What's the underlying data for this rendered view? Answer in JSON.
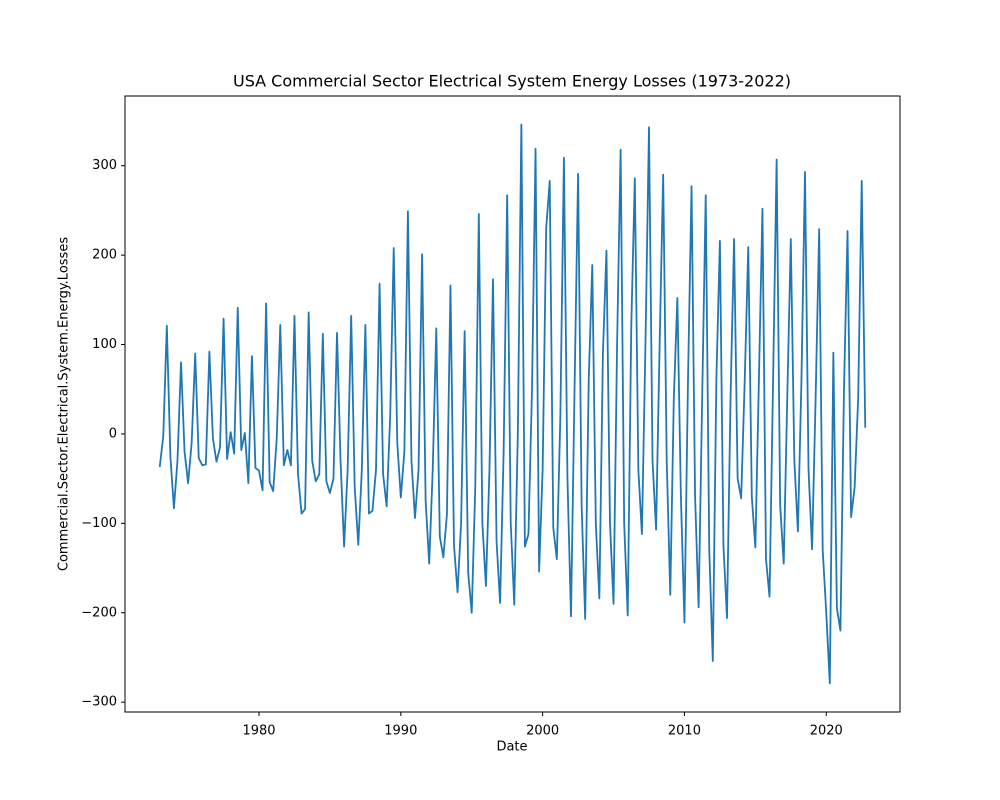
{
  "chart_data": {
    "type": "line",
    "title": "USA Commercial Sector Electrical System Energy Losses (1973-2022)",
    "x_label": "Date",
    "y_label": "Commercial.Sector.Electrical.System.Energy.Losses",
    "x": [
      1973,
      1973.25,
      1973.5,
      1973.75,
      1974,
      1974.25,
      1974.5,
      1974.75,
      1975,
      1975.25,
      1975.5,
      1975.75,
      1976,
      1976.25,
      1976.5,
      1976.75,
      1977,
      1977.25,
      1977.5,
      1977.75,
      1978,
      1978.25,
      1978.5,
      1978.75,
      1979,
      1979.25,
      1979.5,
      1979.75,
      1980,
      1980.25,
      1980.5,
      1980.75,
      1981,
      1981.25,
      1981.5,
      1981.75,
      1982,
      1982.25,
      1982.5,
      1982.75,
      1983,
      1983.25,
      1983.5,
      1983.75,
      1984,
      1984.25,
      1984.5,
      1984.75,
      1985,
      1985.25,
      1985.5,
      1985.75,
      1986,
      1986.25,
      1986.5,
      1986.75,
      1987,
      1987.25,
      1987.5,
      1987.75,
      1988,
      1988.25,
      1988.5,
      1988.75,
      1989,
      1989.25,
      1989.5,
      1989.75,
      1990,
      1990.25,
      1990.5,
      1990.75,
      1991,
      1991.25,
      1991.5,
      1991.75,
      1992,
      1992.25,
      1992.5,
      1992.75,
      1993,
      1993.25,
      1993.5,
      1993.75,
      1994,
      1994.25,
      1994.5,
      1994.75,
      1995,
      1995.25,
      1995.5,
      1995.75,
      1996,
      1996.25,
      1996.5,
      1996.75,
      1997,
      1997.25,
      1997.5,
      1997.75,
      1998,
      1998.25,
      1998.5,
      1998.75,
      1999,
      1999.25,
      1999.5,
      1999.75,
      2000,
      2000.25,
      2000.5,
      2000.75,
      2001,
      2001.25,
      2001.5,
      2001.75,
      2002,
      2002.25,
      2002.5,
      2002.75,
      2003,
      2003.25,
      2003.5,
      2003.75,
      2004,
      2004.25,
      2004.5,
      2004.75,
      2005,
      2005.25,
      2005.5,
      2005.75,
      2006,
      2006.25,
      2006.5,
      2006.75,
      2007,
      2007.25,
      2007.5,
      2007.75,
      2008,
      2008.25,
      2008.5,
      2008.75,
      2009,
      2009.25,
      2009.5,
      2009.75,
      2010,
      2010.25,
      2010.5,
      2010.75,
      2011,
      2011.25,
      2011.5,
      2011.75,
      2012,
      2012.25,
      2012.5,
      2012.75,
      2013,
      2013.25,
      2013.5,
      2013.75,
      2014,
      2014.25,
      2014.5,
      2014.75,
      2015,
      2015.25,
      2015.5,
      2015.75,
      2016,
      2016.25,
      2016.5,
      2016.75,
      2017,
      2017.25,
      2017.5,
      2017.75,
      2018,
      2018.25,
      2018.5,
      2018.75,
      2019,
      2019.25,
      2019.5,
      2019.75,
      2020,
      2020.25,
      2020.5,
      2020.75,
      2021,
      2021.25,
      2021.5,
      2021.75,
      2022,
      2022.25,
      2022.5,
      2022.75
    ],
    "series": [
      {
        "color": "#1f77b4",
        "values": [
          -37,
          -2,
          121,
          -25,
          -83,
          -30,
          80,
          -20,
          -55,
          -10,
          90,
          -27,
          -35,
          -34,
          92,
          -5,
          -31,
          -15,
          129,
          -28,
          2,
          -22,
          141,
          -18,
          1,
          -55,
          87,
          -38,
          -41,
          -63,
          146,
          -54,
          -64,
          -5,
          122,
          -35,
          -18,
          -35,
          132,
          -45,
          -89,
          -84,
          136,
          -30,
          -53,
          -45,
          112,
          -53,
          -66,
          -50,
          113,
          -30,
          -126,
          -40,
          132,
          -60,
          -124,
          -40,
          122,
          -89,
          -86,
          -40,
          168,
          -45,
          -81,
          20,
          208,
          -10,
          -71,
          -20,
          249,
          -30,
          -94,
          -40,
          201,
          -75,
          -145,
          -40,
          118,
          -115,
          -138,
          -90,
          166,
          -125,
          -177,
          -100,
          115,
          -155,
          -200,
          -60,
          246,
          -100,
          -170,
          -40,
          173,
          -120,
          -189,
          -20,
          267,
          -100,
          -191,
          0,
          346,
          -126,
          -112,
          50,
          319,
          -154,
          -40,
          230,
          283,
          -105,
          -140,
          20,
          309,
          -50,
          -204,
          50,
          291,
          -80,
          -207,
          60,
          189,
          -100,
          -184,
          90,
          205,
          -100,
          -190,
          100,
          318,
          -100,
          -203,
          120,
          286,
          -40,
          -112,
          100,
          343,
          -30,
          -107,
          100,
          290,
          -30,
          -180,
          40,
          152,
          -70,
          -211,
          60,
          277,
          -70,
          -194,
          40,
          267,
          -130,
          -254,
          60,
          216,
          -125,
          -206,
          40,
          218,
          -50,
          -72,
          60,
          209,
          -70,
          -127,
          60,
          252,
          -140,
          -182,
          60,
          307,
          -80,
          -145,
          40,
          218,
          -30,
          -109,
          60,
          293,
          -40,
          -129,
          40,
          229,
          -130,
          -200,
          -279,
          91,
          -195,
          -220,
          50,
          227,
          -93,
          -60,
          40,
          283,
          7
        ]
      }
    ],
    "xlim": [
      1970.55,
      2025.2
    ],
    "ylim": [
      -311,
      378
    ],
    "xticks": [
      1980,
      1990,
      2000,
      2010,
      2020
    ],
    "yticks": [
      {
        "value": -300,
        "label": "−300"
      },
      {
        "value": -200,
        "label": "−200"
      },
      {
        "value": -100,
        "label": "−100"
      },
      0,
      100,
      200,
      300
    ],
    "grid": false
  }
}
